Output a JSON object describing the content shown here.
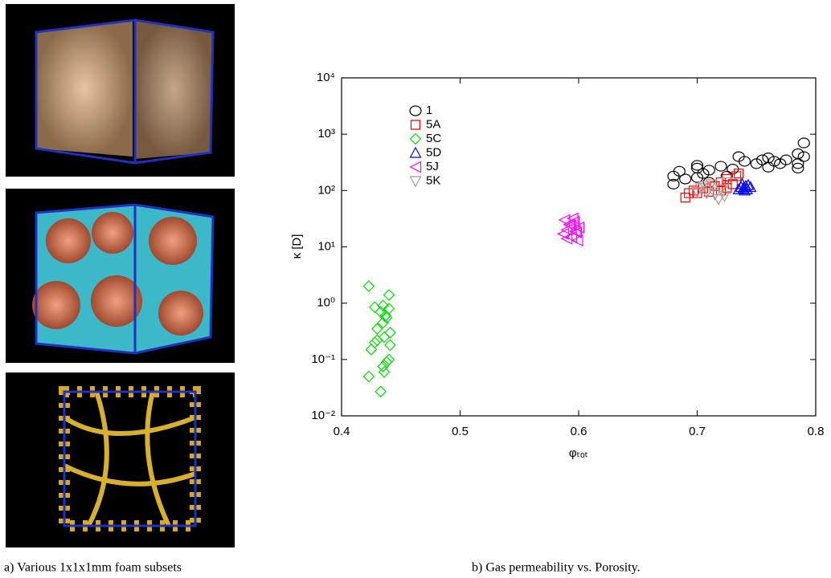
{
  "chart_data": {
    "type": "scatter",
    "x_label": "φₜₒₜ",
    "y_label": "κ [D]",
    "xlim": [
      0.4,
      0.8
    ],
    "xticks": [
      0.4,
      0.5,
      0.6,
      0.7,
      0.8
    ],
    "ylim": [
      0.01,
      10000
    ],
    "log_y": true,
    "yticks": [
      {
        "value": 0.01,
        "label": "10⁻²"
      },
      {
        "value": 0.1,
        "label": "10⁻¹"
      },
      {
        "value": 1,
        "label": "10⁰"
      },
      {
        "value": 10,
        "label": "10¹"
      },
      {
        "value": 100,
        "label": "10²"
      },
      {
        "value": 1000,
        "label": "10³"
      },
      {
        "value": 10000,
        "label": "10⁴"
      }
    ],
    "legend": "upper left",
    "series": [
      {
        "name": "1",
        "color": "#000000",
        "marker": "circle",
        "x": [
          0.68,
          0.68,
          0.685,
          0.69,
          0.7,
          0.7,
          0.705,
          0.71,
          0.72,
          0.725,
          0.73,
          0.735,
          0.74,
          0.75,
          0.755,
          0.76,
          0.76,
          0.765,
          0.77,
          0.775,
          0.785,
          0.785,
          0.79,
          0.79,
          0.785,
          0.7,
          0.71
        ],
        "values": [
          180,
          130,
          220,
          160,
          250,
          280,
          200,
          230,
          270,
          180,
          240,
          400,
          330,
          300,
          350,
          380,
          260,
          330,
          300,
          350,
          450,
          300,
          700,
          400,
          250,
          170,
          140
        ]
      },
      {
        "name": "5A",
        "color": "#ff0000",
        "marker": "square",
        "x": [
          0.69,
          0.693,
          0.697,
          0.7,
          0.705,
          0.71,
          0.715,
          0.72,
          0.725,
          0.73,
          0.733,
          0.735,
          0.72,
          0.725
        ],
        "values": [
          75,
          90,
          100,
          90,
          110,
          95,
          120,
          140,
          160,
          130,
          180,
          200,
          100,
          110
        ]
      },
      {
        "name": "5C",
        "color": "#00dd00",
        "marker": "diamond",
        "x": [
          0.423,
          0.425,
          0.423,
          0.428,
          0.428,
          0.43,
          0.43,
          0.433,
          0.435,
          0.435,
          0.436,
          0.435,
          0.433,
          0.436,
          0.438,
          0.44,
          0.44,
          0.441,
          0.441,
          0.44,
          0.438,
          0.437
        ],
        "values": [
          2,
          0.15,
          0.05,
          0.2,
          0.85,
          0.22,
          0.35,
          0.7,
          0.9,
          0.45,
          0.25,
          0.075,
          0.027,
          0.06,
          0.55,
          1.4,
          0.8,
          0.3,
          0.18,
          0.1,
          0.09,
          0.6
        ]
      },
      {
        "name": "5D",
        "color": "#0000ff",
        "marker": "triangle-up",
        "x": [
          0.735,
          0.737,
          0.739,
          0.741,
          0.743,
          0.745,
          0.738,
          0.742,
          0.74
        ],
        "values": [
          105,
          115,
          110,
          120,
          125,
          115,
          130,
          105,
          100
        ]
      },
      {
        "name": "5J",
        "color": "#ff00ff",
        "marker": "triangle-left",
        "x": [
          0.588,
          0.59,
          0.592,
          0.594,
          0.596,
          0.598,
          0.6,
          0.59,
          0.595,
          0.599,
          0.587,
          0.593,
          0.597
        ],
        "values": [
          30,
          20,
          25,
          15,
          28,
          18,
          22,
          14,
          32,
          13,
          17,
          24,
          19
        ]
      },
      {
        "name": "5K",
        "color": "#bc8f8f",
        "marker": "triangle-down",
        "x": [
          0.7,
          0.703,
          0.706,
          0.709,
          0.712,
          0.715,
          0.718,
          0.72,
          0.723,
          0.725,
          0.708,
          0.714
        ],
        "values": [
          95,
          110,
          120,
          100,
          130,
          85,
          70,
          105,
          80,
          140,
          90,
          115
        ]
      }
    ]
  },
  "captions": {
    "left": "a) Various 1x1x1mm foam subsets",
    "right": "b) Gas permeability vs. Porosity."
  }
}
